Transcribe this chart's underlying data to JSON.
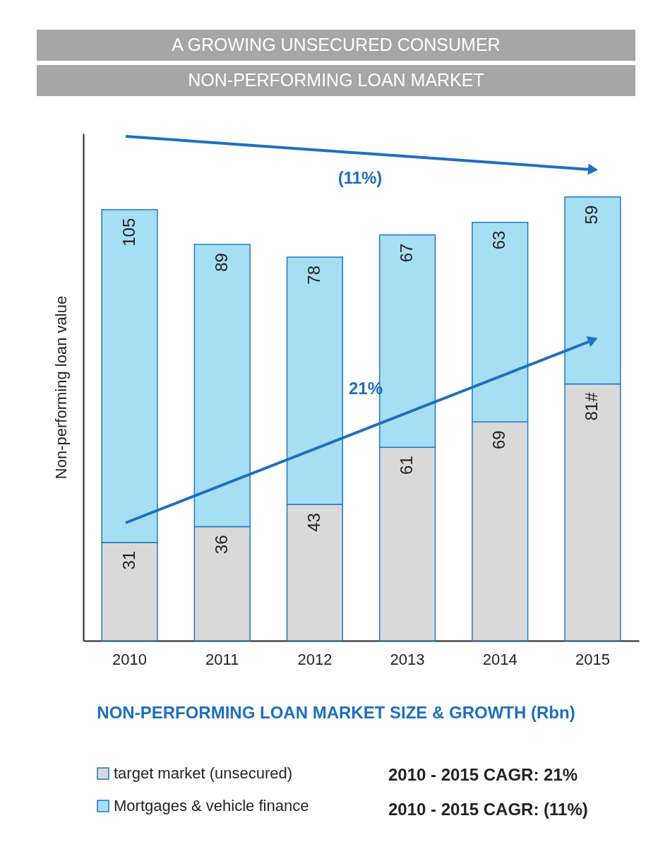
{
  "chart_data": {
    "type": "bar",
    "title": "A GROWING UNSECURED CONSUMER\nNON-PERFORMING LOAN MARKET",
    "xlabel": "NON-PERFORMING LOAN MARKET SIZE & GROWTH (Rbn)",
    "ylabel": "Non-performing loan value",
    "categories": [
      "2010",
      "2011",
      "2012",
      "2013",
      "2014",
      "2015"
    ],
    "stacked": true,
    "data_labels": true,
    "ylim": [
      0,
      160
    ],
    "tick_labels": "x",
    "grid": false,
    "legend": "bottom",
    "series": [
      {
        "name": "target market (unsecured)",
        "color": "#d9d9d9",
        "values": [
          31,
          36,
          43,
          61,
          69,
          81
        ],
        "value_labels": [
          "31",
          "36",
          "43",
          "61",
          "69",
          "81#"
        ]
      },
      {
        "name": "Mortgages & vehicle finance",
        "color": "#a6def4",
        "values": [
          105,
          89,
          78,
          67,
          63,
          59
        ]
      }
    ],
    "annotations": [
      "(11%)",
      "21%",
      "2010 - 2015 CAGR:  21%",
      "2010 - 2015 CAGR: (11%)"
    ]
  }
}
